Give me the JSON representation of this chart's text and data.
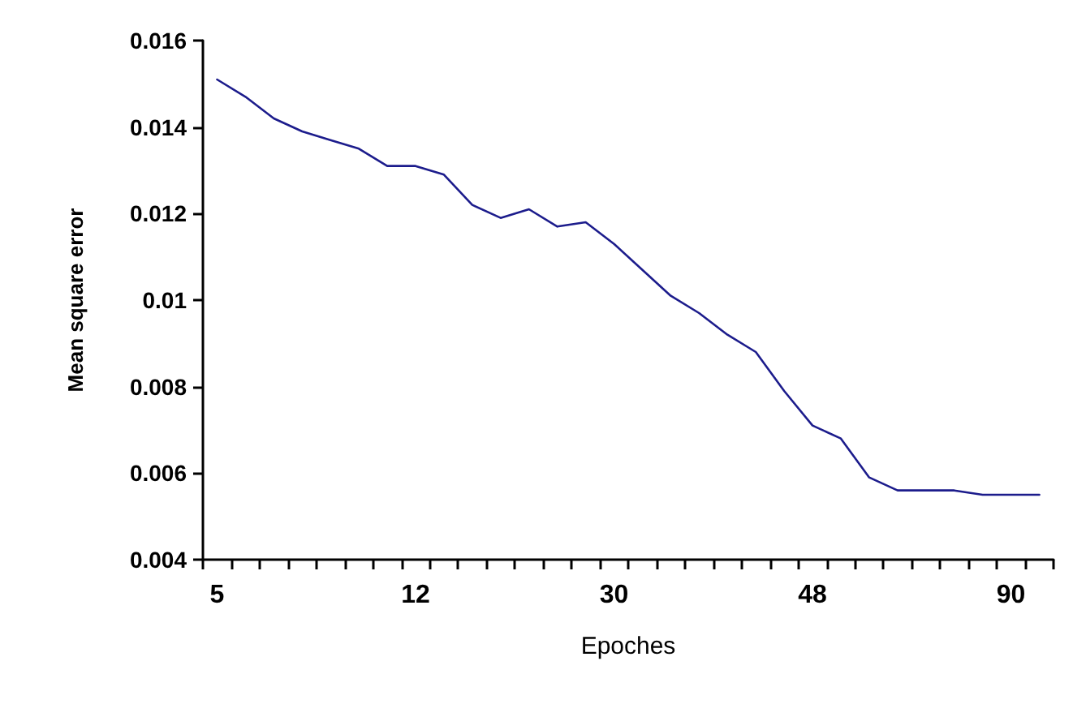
{
  "chart_data": {
    "type": "line",
    "xlabel": "Epoches",
    "ylabel": "Mean square error",
    "categories": [
      "5",
      null,
      null,
      null,
      null,
      null,
      null,
      "12",
      null,
      null,
      null,
      null,
      null,
      null,
      "30",
      null,
      null,
      null,
      null,
      null,
      null,
      "48",
      null,
      null,
      null,
      null,
      null,
      null,
      "90",
      null
    ],
    "series": [
      {
        "color": "#1c1c8c",
        "values": [
          0.0151,
          0.0147,
          0.0142,
          0.0139,
          0.0137,
          0.0135,
          0.0131,
          0.0131,
          0.0129,
          0.0122,
          0.0119,
          0.0121,
          0.0117,
          0.0118,
          0.0113,
          0.0107,
          0.0101,
          0.0097,
          0.0092,
          0.0088,
          0.0079,
          0.0071,
          0.0068,
          0.0059,
          0.0056,
          0.0056,
          0.0056,
          0.0055,
          0.0055,
          0.0055
        ]
      }
    ],
    "ylim": [
      0.004,
      0.016
    ],
    "yticks": [
      0.004,
      0.006,
      0.008,
      0.01,
      0.012,
      0.014,
      0.016
    ],
    "grid": false,
    "marker": "none",
    "line_style": "solid"
  }
}
